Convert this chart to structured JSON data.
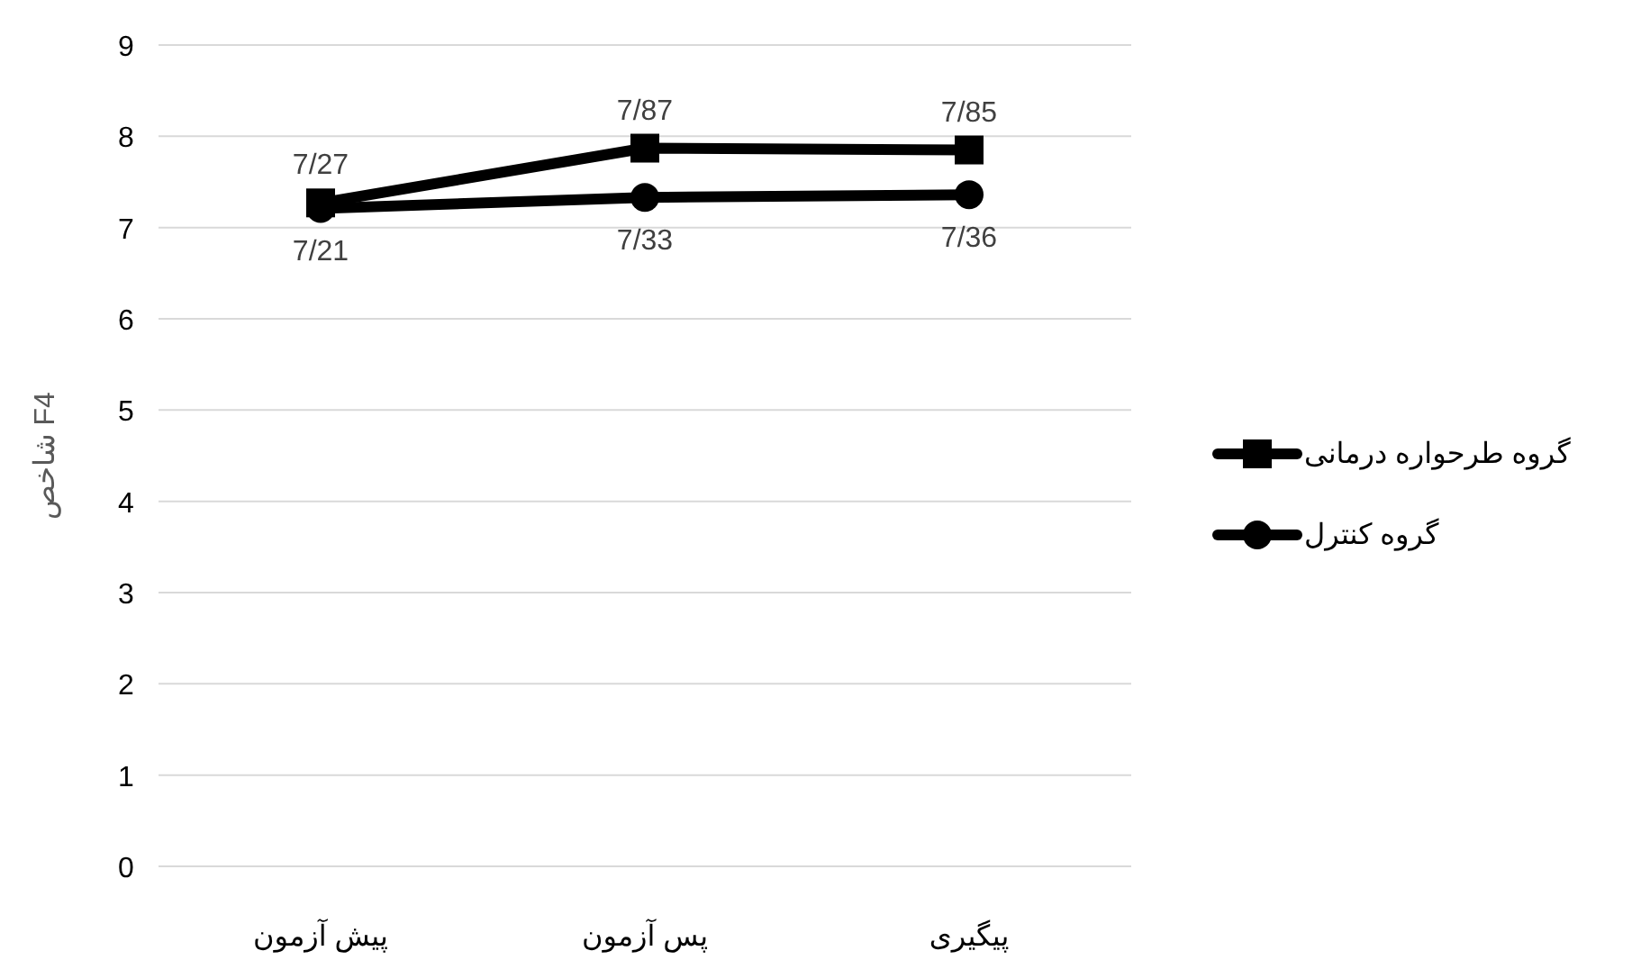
{
  "chart_data": {
    "type": "line",
    "ylabel": "شاخص F4",
    "categories": [
      "پیش آزمون",
      "پس آزمون",
      "پیگیری"
    ],
    "series": [
      {
        "name": "گروه طرحواره درمانی",
        "color": "#000000",
        "marker": "square",
        "values": [
          7.27,
          7.87,
          7.85
        ],
        "value_labels": [
          "7/27",
          "7/87",
          "7/85"
        ]
      },
      {
        "name": "گروه کنترل",
        "color": "#000000",
        "marker": "circle",
        "values": [
          7.21,
          7.33,
          7.36
        ],
        "value_labels": [
          "7/21",
          "7/33",
          "7/36"
        ]
      }
    ],
    "ylim": [
      0,
      9
    ],
    "yticks": [
      0,
      1,
      2,
      3,
      4,
      5,
      6,
      7,
      8,
      9
    ],
    "grid": "y",
    "legend": "right",
    "line_style": "solid"
  }
}
